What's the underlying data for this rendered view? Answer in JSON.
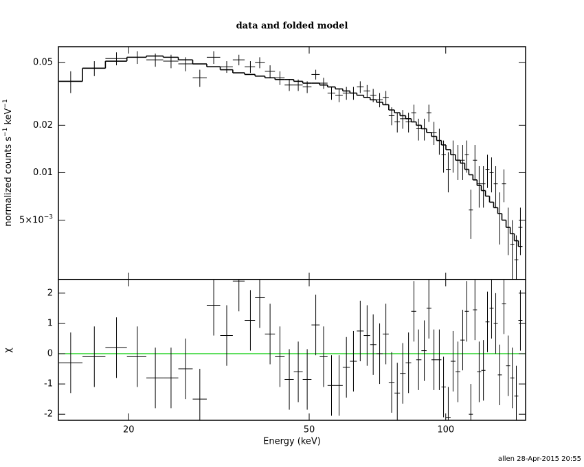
{
  "footer": "allen 28-Apr-2015 20:55",
  "chart_data": [
    {
      "type": "errorbar",
      "title": "data and folded model",
      "ylabel": [
        "normalized counts s",
        "−1",
        " keV",
        "−1"
      ],
      "xlog": true,
      "ylog": true,
      "xlim": [
        14,
        150
      ],
      "ylim": [
        0.0021,
        0.063
      ],
      "xticks": [
        20,
        50,
        100
      ],
      "yticks": [
        {
          "value": 0.005,
          "label": "5×10",
          "sup": "−3"
        },
        0.01,
        0.02,
        0.05
      ],
      "x": [
        14.9,
        16.8,
        18.8,
        20.9,
        22.9,
        24.8,
        26.7,
        28.7,
        30.8,
        32.9,
        35.0,
        37.1,
        38.9,
        41.0,
        43.1,
        45.2,
        47.3,
        49.5,
        51.7,
        53.8,
        56.0,
        58.2,
        60.4,
        62.6,
        64.8,
        67.1,
        69.2,
        71.5,
        73.8,
        76.0,
        78.2,
        80.4,
        82.8,
        85.1,
        87.1,
        89.7,
        91.8,
        94.2,
        96.8,
        98.9,
        101.3,
        103.8,
        106.4,
        109.0,
        111.3,
        113.6,
        116.0,
        118.5,
        121.1,
        123.6,
        126.2,
        128.9,
        131.6,
        134.4,
        137.3,
        140.2,
        143.1,
        146.1
      ],
      "series": [
        {
          "color": "#000000",
          "style": "errorbar",
          "values": [
            0.038,
            0.046,
            0.053,
            0.054,
            0.052,
            0.051,
            0.049,
            0.04,
            0.054,
            0.047,
            0.052,
            0.047,
            0.05,
            0.044,
            0.04,
            0.036,
            0.036,
            0.035,
            0.042,
            0.037,
            0.032,
            0.031,
            0.032,
            0.032,
            0.035,
            0.033,
            0.031,
            0.029,
            0.03,
            0.023,
            0.021,
            0.022,
            0.021,
            0.024,
            0.019,
            0.019,
            0.024,
            0.018,
            0.016,
            0.013,
            0.0105,
            0.013,
            0.012,
            0.012,
            0.013,
            0.0058,
            0.012,
            0.0085,
            0.0085,
            0.0105,
            0.01,
            0.0085,
            0.0055,
            0.0085,
            0.0045,
            0.0035,
            0.0028,
            0.0045
          ],
          "errors": [
            0.006,
            0.005,
            0.005,
            0.005,
            0.005,
            0.005,
            0.005,
            0.005,
            0.005,
            0.004,
            0.004,
            0.004,
            0.004,
            0.004,
            0.004,
            0.003,
            0.003,
            0.003,
            0.003,
            0.003,
            0.003,
            0.003,
            0.003,
            0.003,
            0.003,
            0.003,
            0.003,
            0.003,
            0.003,
            0.003,
            0.003,
            0.003,
            0.003,
            0.003,
            0.003,
            0.003,
            0.003,
            0.003,
            0.003,
            0.003,
            0.003,
            0.003,
            0.003,
            0.003,
            0.003,
            0.002,
            0.003,
            0.0025,
            0.0025,
            0.0025,
            0.0025,
            0.0025,
            0.002,
            0.002,
            0.0015,
            0.0015,
            0.0012,
            0.0015
          ]
        },
        {
          "color": "#000000",
          "style": "step",
          "values": [
            0.038,
            0.046,
            0.051,
            0.054,
            0.055,
            0.054,
            0.052,
            0.049,
            0.047,
            0.045,
            0.043,
            0.042,
            0.041,
            0.04,
            0.039,
            0.039,
            0.038,
            0.037,
            0.037,
            0.036,
            0.035,
            0.034,
            0.033,
            0.032,
            0.031,
            0.03,
            0.029,
            0.028,
            0.027,
            0.025,
            0.024,
            0.023,
            0.022,
            0.021,
            0.02,
            0.019,
            0.018,
            0.017,
            0.016,
            0.015,
            0.014,
            0.013,
            0.012,
            0.0115,
            0.0105,
            0.0097,
            0.009,
            0.0083,
            0.0077,
            0.0071,
            0.0065,
            0.006,
            0.0055,
            0.005,
            0.0045,
            0.0041,
            0.0037,
            0.0034
          ]
        }
      ]
    },
    {
      "type": "errorbar",
      "xlabel": "Energy (keV)",
      "ylabel": [
        "χ"
      ],
      "xlog": true,
      "ylog": false,
      "xlim": [
        14,
        150
      ],
      "ylim": [
        -2.2,
        2.45
      ],
      "xticks": [
        20,
        50,
        100
      ],
      "yticks": [
        -2,
        -1,
        0,
        1,
        2
      ],
      "hline": {
        "value": 0,
        "color": "#00cc00"
      },
      "x": [
        14.9,
        16.8,
        18.8,
        20.9,
        22.9,
        24.8,
        26.7,
        28.7,
        30.8,
        32.9,
        35.0,
        37.1,
        38.9,
        41.0,
        43.1,
        45.2,
        47.3,
        49.5,
        51.7,
        53.8,
        56.0,
        58.2,
        60.4,
        62.6,
        64.8,
        67.1,
        69.2,
        71.5,
        73.8,
        76.0,
        78.2,
        80.4,
        82.8,
        85.1,
        87.1,
        89.7,
        91.8,
        94.2,
        96.8,
        98.9,
        101.3,
        103.8,
        106.4,
        109.0,
        111.3,
        113.6,
        116.0,
        118.5,
        121.1,
        123.6,
        126.2,
        128.9,
        131.6,
        134.4,
        137.3,
        140.2,
        143.1,
        146.1
      ],
      "series": [
        {
          "color": "#000000",
          "style": "errorbar",
          "error": 1,
          "values": [
            -0.3,
            -0.1,
            0.2,
            -0.1,
            -0.8,
            -0.8,
            -0.5,
            -1.5,
            1.6,
            0.6,
            2.4,
            1.1,
            1.85,
            0.65,
            -0.1,
            -0.85,
            -0.6,
            -0.85,
            0.95,
            -0.1,
            -1.05,
            -1.05,
            -0.45,
            -0.25,
            0.75,
            0.6,
            0.3,
            0.0,
            0.65,
            -0.95,
            -1.3,
            -0.65,
            -0.3,
            1.4,
            -0.2,
            0.1,
            1.5,
            -0.2,
            -0.2,
            -1.1,
            -2.1,
            -0.25,
            -0.6,
            0.45,
            1.4,
            -2.0,
            1.45,
            -0.6,
            -0.55,
            1.05,
            1.5,
            1.0,
            -0.7,
            1.65,
            -0.4,
            -0.8,
            -1.4,
            1.1
          ]
        }
      ]
    }
  ]
}
